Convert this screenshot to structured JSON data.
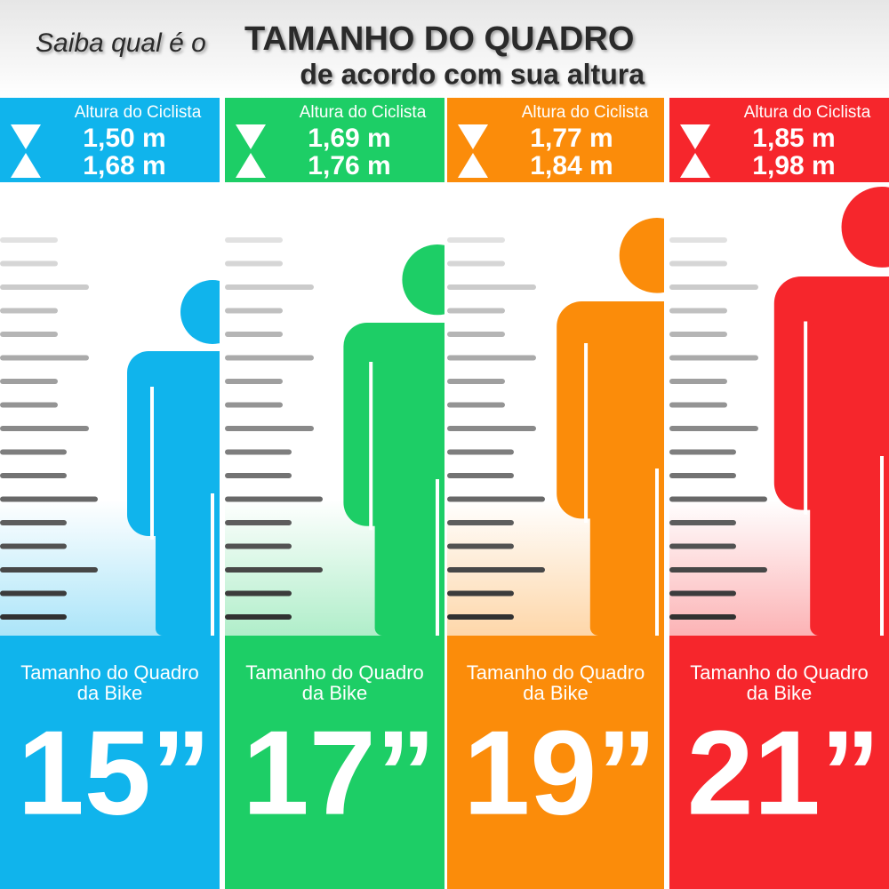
{
  "header": {
    "prefix": "Saiba qual é o",
    "title": "TAMANHO DO QUADRO",
    "subtitle": "de acordo com sua altura"
  },
  "columns": [
    {
      "color": "#10b4ec",
      "label": "Altura do Ciclista",
      "min": "1,50 m",
      "max": "1,68 m",
      "frame_line1": "Tamanho do Quadro",
      "frame_line2": "da Bike",
      "size": "15”"
    },
    {
      "color": "#1dce66",
      "label": "Altura do Ciclista",
      "min": "1,69 m",
      "max": "1,76 m",
      "frame_line1": "Tamanho do Quadro",
      "frame_line2": "da Bike",
      "size": "17”"
    },
    {
      "color": "#fb8c0a",
      "label": "Altura do Ciclista",
      "min": "1,77 m",
      "max": "1,84 m",
      "frame_line1": "Tamanho do Quadro",
      "frame_line2": "da Bike",
      "size": "19”"
    },
    {
      "color": "#f6262c",
      "label": "Altura do Ciclista",
      "min": "1,85 m",
      "max": "1,98 m",
      "frame_line1": "Tamanho do Quadro",
      "frame_line2": "da Bike",
      "size": "21”"
    }
  ]
}
